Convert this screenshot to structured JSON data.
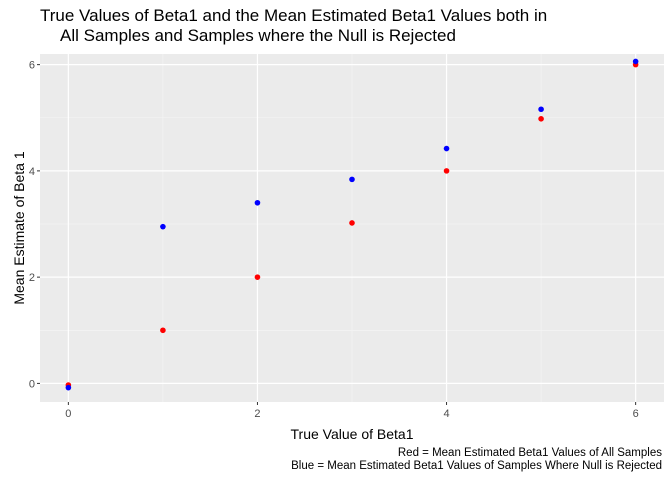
{
  "chart_data": {
    "type": "scatter",
    "title_line1": "True Values of Beta1 and the Mean Estimated Beta1 Values both in",
    "title_line2": "All Samples and Samples where the Null is Rejected",
    "xlabel": "True Value of Beta1",
    "ylabel": "Mean Estimate of Beta 1",
    "xlim": [
      -0.3,
      6.3
    ],
    "ylim": [
      -0.35,
      6.2
    ],
    "x_ticks": [
      0,
      2,
      4,
      6
    ],
    "y_ticks": [
      0,
      2,
      4,
      6
    ],
    "grid": true,
    "series": [
      {
        "color": "#ff0000",
        "x": [
          0,
          1,
          2,
          3,
          4,
          5,
          6
        ],
        "y": [
          -0.03,
          1.0,
          2.0,
          3.02,
          4.0,
          4.98,
          6.0
        ]
      },
      {
        "color": "#0000ff",
        "x": [
          0,
          1,
          2,
          3,
          4,
          5,
          6
        ],
        "y": [
          -0.08,
          2.95,
          3.4,
          3.84,
          4.42,
          5.16,
          6.06
        ]
      }
    ],
    "caption_line1": "Red = Mean Estimated Beta1 Values of All Samples",
    "caption_line2": "Blue = Mean Estimated Beta1 Values of Samples Where Null is Rejected"
  }
}
